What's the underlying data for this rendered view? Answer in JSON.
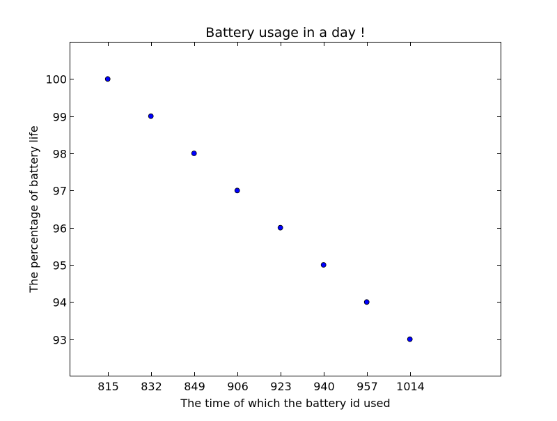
{
  "chart_data": {
    "type": "scatter",
    "title": "Battery usage in a day !",
    "xlabel": "The time of which the battery id used",
    "ylabel": "The percentage of battery life",
    "x_ticks": [
      815,
      832,
      849,
      906,
      923,
      940,
      957,
      1014
    ],
    "y_ticks": [
      93,
      94,
      95,
      96,
      97,
      98,
      99,
      100
    ],
    "xlim": [
      800,
      1050
    ],
    "ylim": [
      92,
      101
    ],
    "grid": false,
    "points": [
      {
        "x": 815,
        "y": 100
      },
      {
        "x": 832,
        "y": 99
      },
      {
        "x": 849,
        "y": 98
      },
      {
        "x": 906,
        "y": 97
      },
      {
        "x": 923,
        "y": 96
      },
      {
        "x": 940,
        "y": 95
      },
      {
        "x": 957,
        "y": 94
      },
      {
        "x": 1014,
        "y": 93
      }
    ],
    "marker_color": "#0000ff",
    "marker_edge_color": "#000000"
  }
}
